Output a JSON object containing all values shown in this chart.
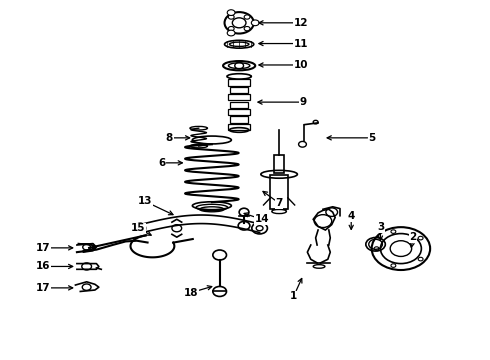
{
  "background_color": "#ffffff",
  "fig_width": 4.9,
  "fig_height": 3.6,
  "dpi": 100,
  "text_color": "#000000",
  "label_fontsize": 7.5,
  "line_color": "#000000",
  "labels": [
    [
      12,
      0.615,
      0.94,
      0.52,
      0.94
    ],
    [
      11,
      0.615,
      0.882,
      0.52,
      0.882
    ],
    [
      10,
      0.615,
      0.822,
      0.52,
      0.822
    ],
    [
      9,
      0.62,
      0.718,
      0.518,
      0.718
    ],
    [
      8,
      0.345,
      0.618,
      0.395,
      0.618
    ],
    [
      6,
      0.33,
      0.548,
      0.38,
      0.548
    ],
    [
      5,
      0.76,
      0.618,
      0.66,
      0.618
    ],
    [
      7,
      0.57,
      0.435,
      0.53,
      0.475
    ],
    [
      13,
      0.295,
      0.44,
      0.36,
      0.398
    ],
    [
      14,
      0.535,
      0.39,
      0.49,
      0.41
    ],
    [
      15,
      0.28,
      0.365,
      0.315,
      0.34
    ],
    [
      18,
      0.39,
      0.185,
      0.44,
      0.205
    ],
    [
      17,
      0.085,
      0.31,
      0.155,
      0.31
    ],
    [
      16,
      0.085,
      0.258,
      0.155,
      0.258
    ],
    [
      17,
      0.085,
      0.198,
      0.155,
      0.198
    ],
    [
      1,
      0.6,
      0.175,
      0.62,
      0.235
    ],
    [
      2,
      0.845,
      0.34,
      0.84,
      0.3
    ],
    [
      3,
      0.778,
      0.368,
      0.778,
      0.32
    ],
    [
      4,
      0.718,
      0.398,
      0.718,
      0.35
    ]
  ]
}
